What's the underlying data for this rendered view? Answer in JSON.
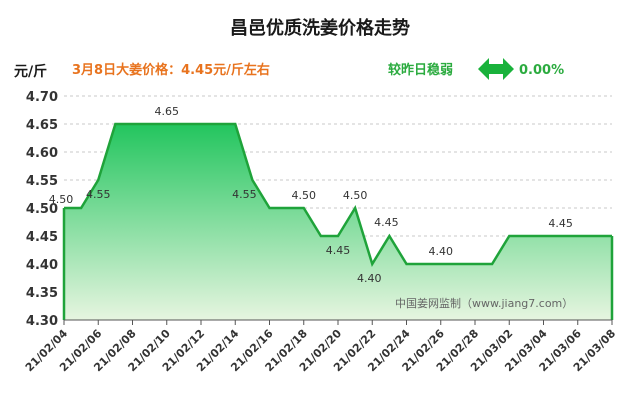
{
  "chart_data": {
    "type": "area",
    "title": "昌邑优质洗姜价格走势",
    "ylabel": "元/斤",
    "header_price_text": "3月8日大姜价格：4.45元/斤左右",
    "change_label": "较昨日稳弱",
    "change_value": "0.00%",
    "watermark": "中国姜网监制（www.jiang7.com）",
    "ylim": [
      4.3,
      4.7
    ],
    "yticks": [
      "4.70",
      "4.65",
      "4.60",
      "4.55",
      "4.50",
      "4.45",
      "4.40",
      "4.35",
      "4.30"
    ],
    "xticks": [
      "21/02/04",
      "21/02/06",
      "21/02/08",
      "21/02/10",
      "21/02/12",
      "21/02/14",
      "21/02/16",
      "21/02/18",
      "21/02/20",
      "21/02/22",
      "21/02/24",
      "21/02/26",
      "21/02/28",
      "21/03/02",
      "21/03/04",
      "21/03/06",
      "21/03/08"
    ],
    "series": [
      {
        "x": [
          "21/02/04",
          "21/02/05",
          "21/02/06",
          "21/02/07",
          "21/02/08",
          "21/02/09",
          "21/02/10",
          "21/02/11",
          "21/02/12",
          "21/02/13",
          "21/02/14",
          "21/02/15",
          "21/02/16",
          "21/02/17",
          "21/02/18",
          "21/02/19",
          "21/02/20",
          "21/02/21",
          "21/02/22",
          "21/02/23",
          "21/02/24",
          "21/02/25",
          "21/02/26",
          "21/02/27",
          "21/02/28",
          "21/03/01",
          "21/03/02",
          "21/03/03",
          "21/03/04",
          "21/03/05",
          "21/03/06",
          "21/03/07",
          "21/03/08"
        ],
        "values": [
          4.5,
          4.5,
          4.55,
          4.65,
          4.65,
          4.65,
          4.65,
          4.65,
          4.65,
          4.65,
          4.65,
          4.55,
          4.5,
          4.5,
          4.5,
          4.45,
          4.45,
          4.5,
          4.4,
          4.45,
          4.4,
          4.4,
          4.4,
          4.4,
          4.4,
          4.4,
          4.45,
          4.45,
          4.45,
          4.45,
          4.45,
          4.45,
          4.45
        ]
      }
    ],
    "data_labels": [
      {
        "i": 0,
        "text": "4.50"
      },
      {
        "i": 2,
        "text": "4.55"
      },
      {
        "i": 6,
        "text": "4.65"
      },
      {
        "i": 11,
        "text": "4.55"
      },
      {
        "i": 14,
        "text": "4.50"
      },
      {
        "i": 16,
        "text": "4.45"
      },
      {
        "i": 17,
        "text": "4.50"
      },
      {
        "i": 18,
        "text": "4.40"
      },
      {
        "i": 19,
        "text": "4.45"
      },
      {
        "i": 22,
        "text": "4.40"
      },
      {
        "i": 29,
        "text": "4.45"
      }
    ],
    "colors": {
      "line": "#1fa33a",
      "area_top": "#22c55e",
      "area_bottom": "#e6f5e0",
      "arrow": "#19b23b",
      "accent_orange": "#e8731e"
    },
    "grid": true
  }
}
